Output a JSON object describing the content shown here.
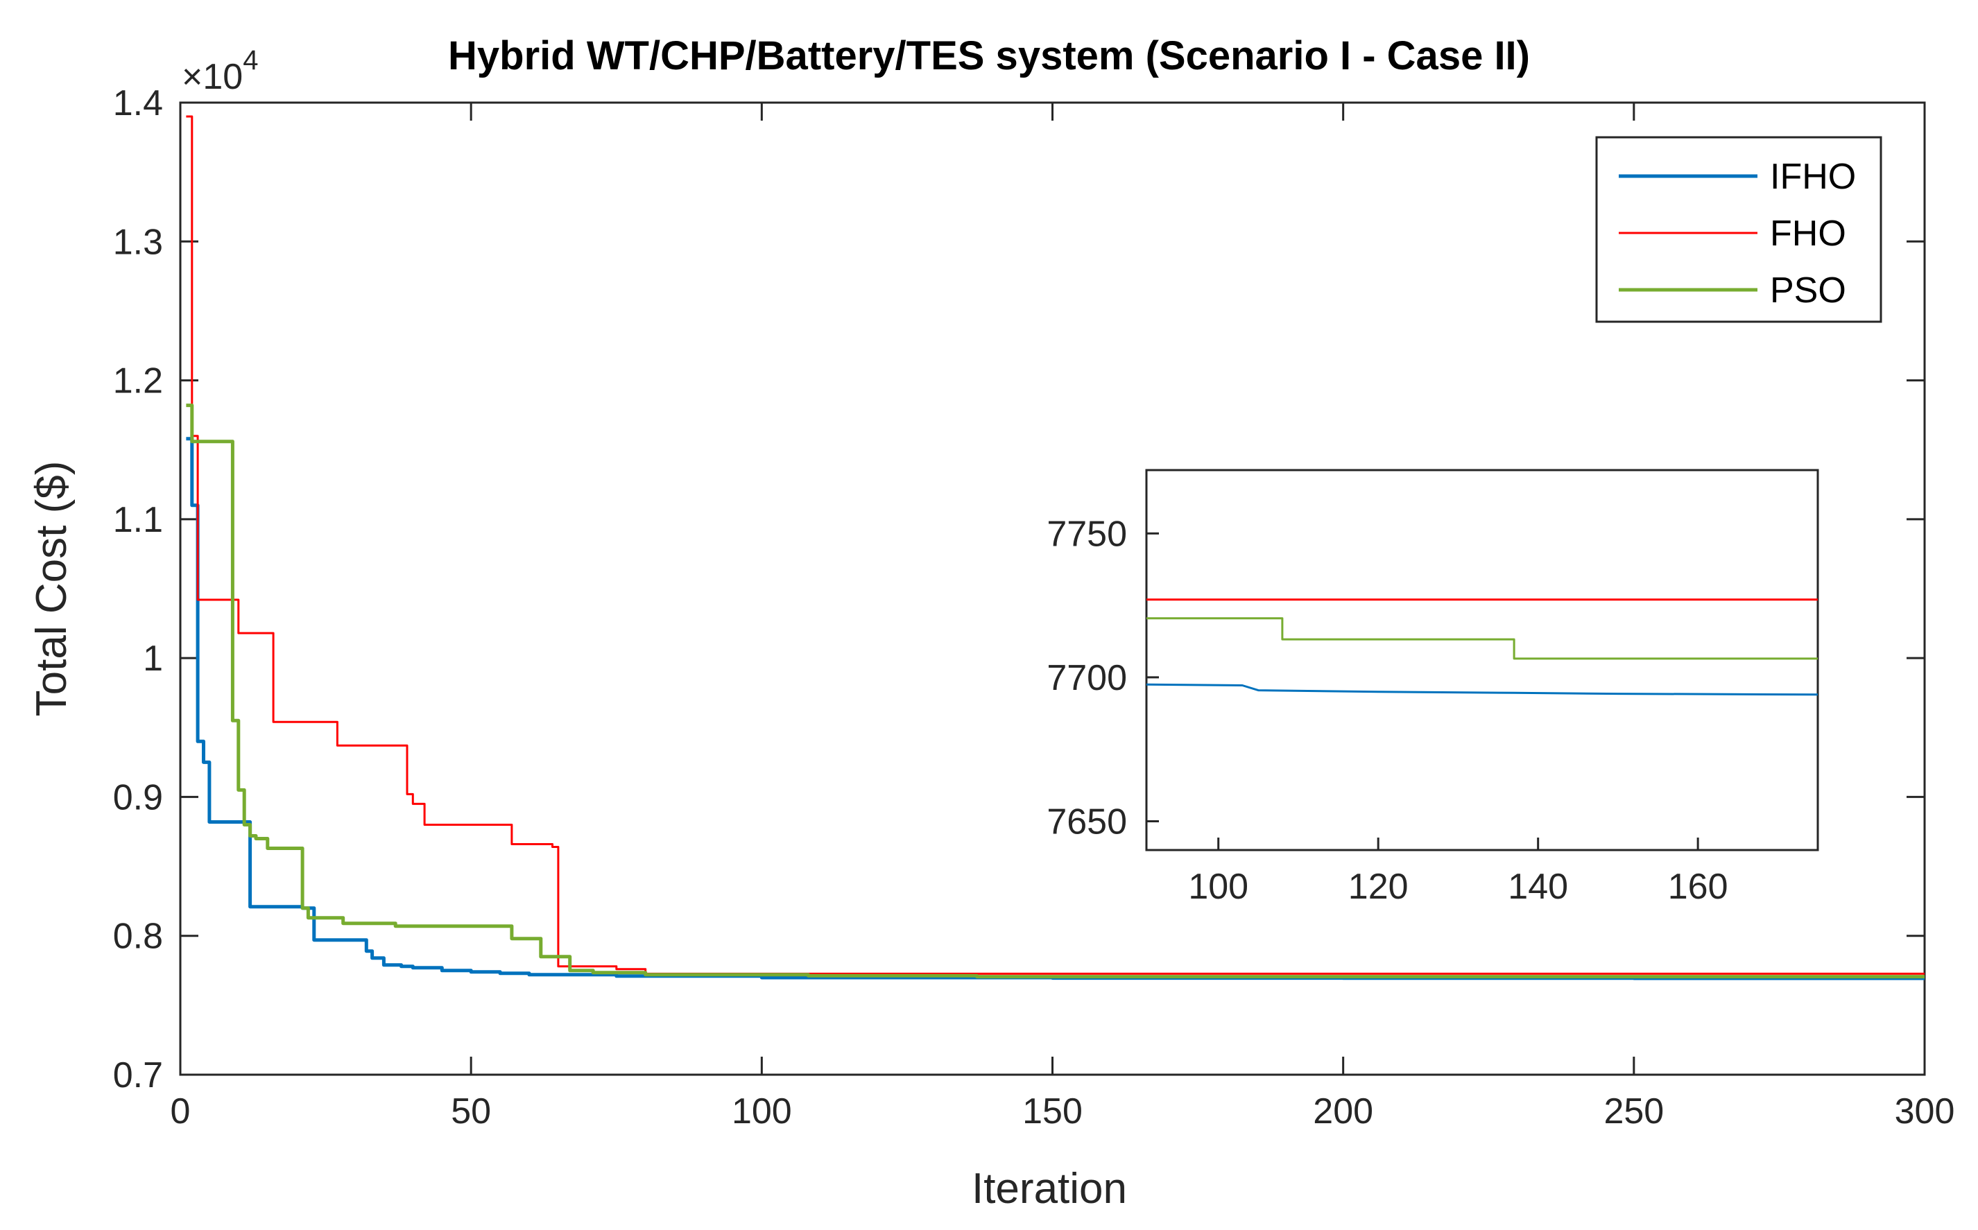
{
  "chart_data": [
    {
      "type": "line",
      "title": "Hybrid WT/CHP/Battery/TES system (Scenario I - Case II)",
      "xlabel": "Iteration",
      "ylabel": "Total Cost ($)",
      "exponent_label_base": "×10",
      "exponent_label_power": "4",
      "xlim": [
        0,
        300
      ],
      "ylim": [
        0.7,
        1.4
      ],
      "xticks": [
        0,
        50,
        100,
        150,
        200,
        250,
        300
      ],
      "xtick_labels": [
        "0",
        "50",
        "100",
        "150",
        "200",
        "250",
        "300"
      ],
      "yticks": [
        0.7,
        0.8,
        0.9,
        1.0,
        1.1,
        1.2,
        1.3,
        1.4
      ],
      "ytick_labels": [
        "0.7",
        "0.8",
        "0.9",
        "1",
        "1.1",
        "1.2",
        "1.3",
        "1.4"
      ],
      "grid": false,
      "legend_position": "top-right",
      "series": [
        {
          "name": "IFHO",
          "color": "#0072BD",
          "step": true,
          "x": [
            1,
            2,
            3,
            4,
            5,
            8,
            12,
            21,
            23,
            32,
            33,
            35,
            38,
            40,
            45,
            50,
            55,
            60,
            75,
            100,
            150,
            200,
            250,
            300
          ],
          "y": [
            1.158,
            1.11,
            0.94,
            0.925,
            0.882,
            0.882,
            0.821,
            0.82,
            0.797,
            0.789,
            0.784,
            0.779,
            0.778,
            0.777,
            0.775,
            0.774,
            0.773,
            0.772,
            0.771,
            0.7699,
            0.7696,
            0.7695,
            0.7694,
            0.7694
          ]
        },
        {
          "name": "FHO",
          "color": "#FF0000",
          "step": true,
          "x": [
            1,
            2,
            3,
            9,
            10,
            15,
            16,
            26,
            27,
            38,
            39,
            40,
            42,
            56,
            57,
            62,
            64,
            65,
            70,
            75,
            80,
            300
          ],
          "y": [
            1.39,
            1.16,
            1.042,
            1.042,
            1.018,
            1.018,
            0.954,
            0.954,
            0.937,
            0.937,
            0.902,
            0.895,
            0.88,
            0.88,
            0.866,
            0.866,
            0.864,
            0.778,
            0.778,
            0.776,
            0.7727,
            0.7727
          ]
        },
        {
          "name": "PSO",
          "color": "#77AC30",
          "step": true,
          "x": [
            1,
            2,
            8,
            9,
            10,
            11,
            12,
            13,
            15,
            20,
            21,
            22,
            27,
            28,
            36,
            37,
            56,
            57,
            61,
            62,
            66,
            67,
            71,
            80,
            108,
            137,
            300
          ],
          "y": [
            1.182,
            1.156,
            1.156,
            0.955,
            0.905,
            0.88,
            0.872,
            0.87,
            0.863,
            0.863,
            0.82,
            0.813,
            0.813,
            0.809,
            0.809,
            0.807,
            0.807,
            0.798,
            0.798,
            0.785,
            0.785,
            0.775,
            0.7735,
            0.772,
            0.7713,
            0.7706,
            0.7706
          ]
        }
      ]
    },
    {
      "type": "line",
      "title": "",
      "xlim": [
        91,
        175
      ],
      "ylim": [
        7640,
        7772
      ],
      "xticks": [
        100,
        120,
        140,
        160
      ],
      "xtick_labels": [
        "100",
        "120",
        "140",
        "160"
      ],
      "yticks": [
        7650,
        7700,
        7750
      ],
      "ytick_labels": [
        "7650",
        "7700",
        "7750"
      ],
      "grid": false,
      "series": [
        {
          "name": "IFHO",
          "color": "#0072BD",
          "step": false,
          "x": [
            91,
            103,
            105,
            120,
            137,
            150,
            175
          ],
          "y": [
            7697.5,
            7697.2,
            7695.5,
            7695.0,
            7694.6,
            7694.3,
            7694.0
          ]
        },
        {
          "name": "FHO",
          "color": "#FF0000",
          "step": false,
          "x": [
            91,
            175
          ],
          "y": [
            7727,
            7727
          ]
        },
        {
          "name": "PSO",
          "color": "#77AC30",
          "step": true,
          "x": [
            91,
            107,
            108,
            136,
            137,
            175
          ],
          "y": [
            7720.5,
            7720.5,
            7713.2,
            7713.2,
            7706.5,
            7706.5
          ]
        }
      ]
    }
  ]
}
